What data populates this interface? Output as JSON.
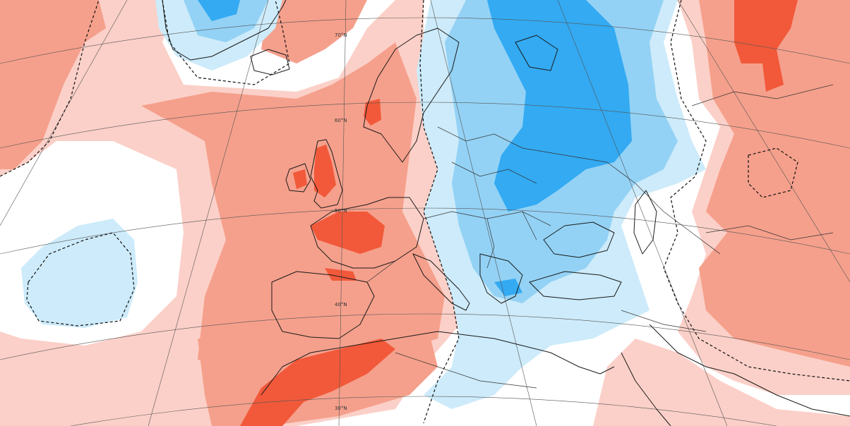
{
  "map": {
    "background": "#ffffff",
    "palette": {
      "warm_light": "#fbd0c8",
      "warm_medium": "#f5a08c",
      "warm_strong": "#f1593a",
      "cool_light": "#cdebfa",
      "cool_medium": "#93d2f5",
      "cool_strong": "#33aaf2"
    },
    "latitude_labels": [
      "70°N",
      "60°N",
      "50°N",
      "40°N",
      "30°N"
    ]
  }
}
